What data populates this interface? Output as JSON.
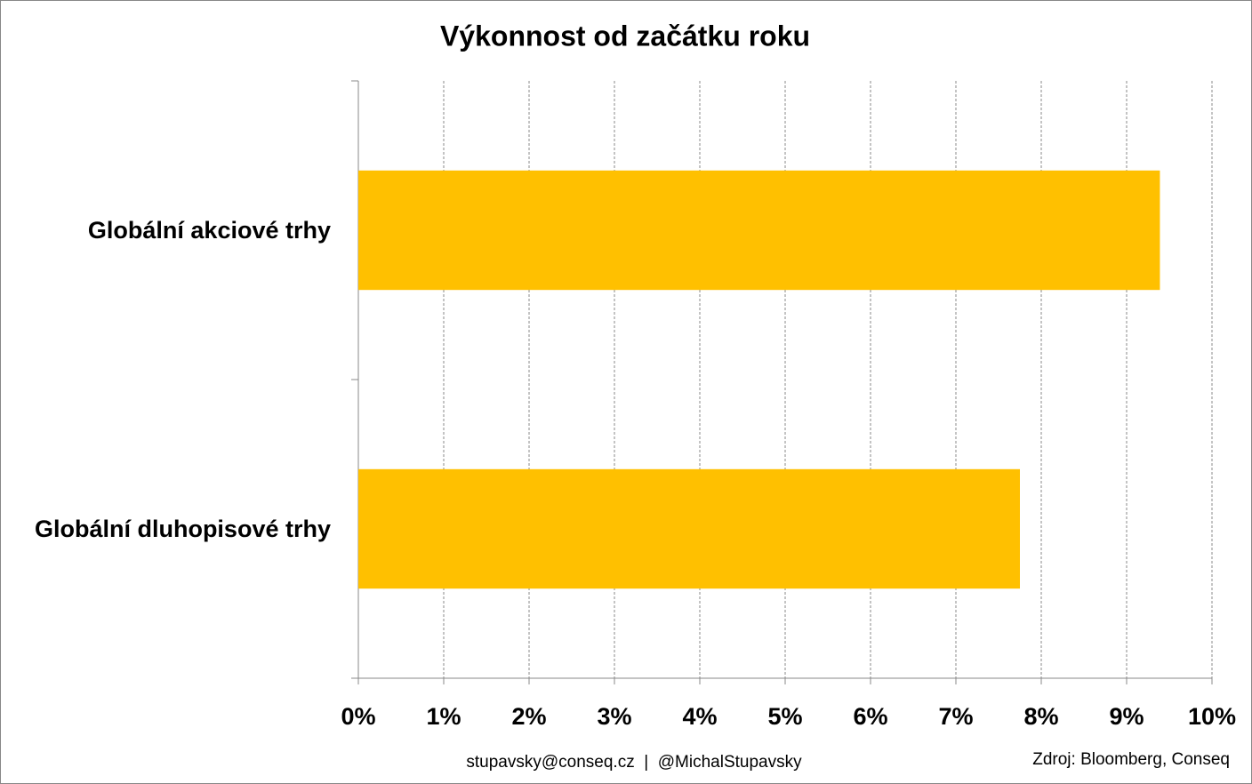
{
  "chart_data": {
    "type": "hbar",
    "title": "Výkonnost od začátku roku",
    "categories": [
      "Globální akciové trhy",
      "Globální dluhopisové trhy"
    ],
    "values": [
      9.39,
      7.75
    ],
    "color": "#ffc000",
    "xlim": [
      0,
      10
    ],
    "xticks": [
      {
        "value": 0,
        "label": "0%"
      },
      {
        "value": 1,
        "label": "1%"
      },
      {
        "value": 2,
        "label": "2%"
      },
      {
        "value": 3,
        "label": "3%"
      },
      {
        "value": 4,
        "label": "4%"
      },
      {
        "value": 5,
        "label": "5%"
      },
      {
        "value": 6,
        "label": "6%"
      },
      {
        "value": 7,
        "label": "7%"
      },
      {
        "value": 8,
        "label": "8%"
      },
      {
        "value": 9,
        "label": "9%"
      },
      {
        "value": 10,
        "label": "10%"
      }
    ],
    "grid": true,
    "footer": "stupavsky@conseq.cz  |  @MichalStupavsky",
    "source": "Zdroj: Bloomberg, Conseq"
  }
}
